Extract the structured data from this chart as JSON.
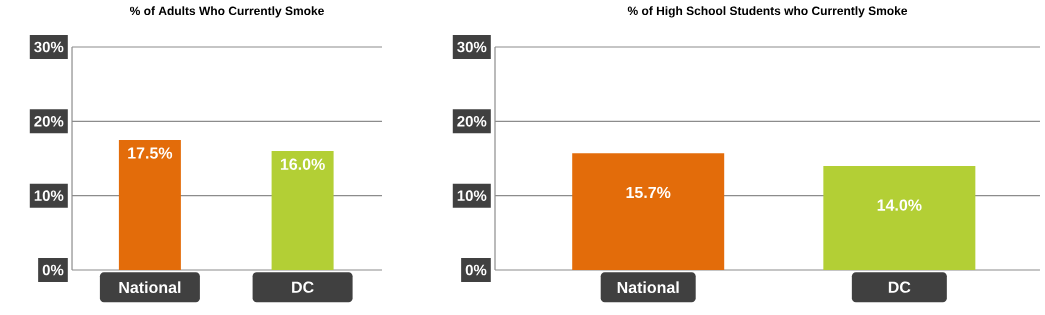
{
  "chart_data": [
    {
      "type": "bar",
      "title": "% of Adults Who Currently Smoke",
      "categories": [
        "National",
        "DC"
      ],
      "values": [
        17.5,
        16.0
      ],
      "colors": [
        "#e36c0a",
        "#b3cf35"
      ],
      "value_labels": [
        "17.5%",
        "16.0%"
      ],
      "ylim": [
        0,
        30
      ],
      "yticks": [
        {
          "value": 0,
          "label": "0%"
        },
        {
          "value": 10,
          "label": "10%"
        },
        {
          "value": 20,
          "label": "20%"
        },
        {
          "value": 30,
          "label": "30%"
        }
      ],
      "grid": "y"
    },
    {
      "type": "bar",
      "title": "% of High School Students who Currently Smoke",
      "categories": [
        "National",
        "DC"
      ],
      "values": [
        15.7,
        14.0
      ],
      "colors": [
        "#e36c0a",
        "#b3cf35"
      ],
      "value_labels": [
        "15.7%",
        "14.0%"
      ],
      "ylim": [
        0,
        30
      ],
      "yticks": [
        {
          "value": 0,
          "label": "0%"
        },
        {
          "value": 10,
          "label": "10%"
        },
        {
          "value": 20,
          "label": "20%"
        },
        {
          "value": 30,
          "label": "30%"
        }
      ],
      "grid": "y"
    }
  ]
}
